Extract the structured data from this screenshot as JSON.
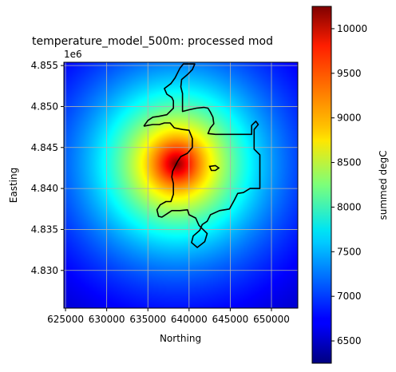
{
  "chart_data": {
    "type": "heatmap",
    "title": "temperature_model_500m: processed mod",
    "xlabel": "Northing",
    "ylabel": "Easting",
    "y_offset_label": "1e6",
    "xlim": [
      624800,
      653200
    ],
    "ylim": [
      4825400,
      4855400
    ],
    "x_ticks": [
      625000,
      630000,
      635000,
      640000,
      645000,
      650000
    ],
    "x_tick_labels": [
      "625000",
      "630000",
      "635000",
      "640000",
      "645000",
      "650000"
    ],
    "y_ticks": [
      4.83,
      4.835,
      4.84,
      4.845,
      4.85,
      4.855
    ],
    "y_tick_labels": [
      "4.830",
      "4.835",
      "4.840",
      "4.845",
      "4.850",
      "4.855"
    ],
    "grid": true,
    "colormap": "jet",
    "colorbar": {
      "label": "summed degC",
      "range": [
        6250,
        10250
      ],
      "ticks": [
        6500,
        7000,
        7500,
        8000,
        8500,
        9000,
        9500,
        10000
      ],
      "tick_labels": [
        "6500",
        "7000",
        "7500",
        "8000",
        "8500",
        "9000",
        "9500",
        "10000"
      ]
    },
    "field": {
      "peak_value": 10250,
      "center": [
        638500,
        4843000
      ],
      "min_value": 6250
    },
    "boundary_color": "#000000",
    "boundary": [
      [
        634500,
        4847600
      ],
      [
        635000,
        4848300
      ],
      [
        635600,
        4848700
      ],
      [
        636300,
        4848800
      ],
      [
        637300,
        4849000
      ],
      [
        638100,
        4849800
      ],
      [
        638100,
        4850700
      ],
      [
        637900,
        4851100
      ],
      [
        637300,
        4851500
      ],
      [
        637000,
        4852200
      ],
      [
        637800,
        4852800
      ],
      [
        638300,
        4853500
      ],
      [
        638600,
        4854100
      ],
      [
        638900,
        4854700
      ],
      [
        639300,
        4855200
      ],
      [
        640700,
        4855200
      ],
      [
        640400,
        4854500
      ],
      [
        639800,
        4853900
      ],
      [
        639100,
        4853300
      ],
      [
        639000,
        4852400
      ],
      [
        639200,
        4851600
      ],
      [
        639200,
        4849400
      ],
      [
        640000,
        4849600
      ],
      [
        640900,
        4849800
      ],
      [
        641800,
        4849900
      ],
      [
        642300,
        4849800
      ],
      [
        642600,
        4849300
      ],
      [
        642900,
        4848700
      ],
      [
        643000,
        4847900
      ],
      [
        642600,
        4847400
      ],
      [
        642300,
        4846700
      ],
      [
        643200,
        4846600
      ],
      [
        645600,
        4846600
      ],
      [
        647600,
        4846600
      ],
      [
        647600,
        4847700
      ],
      [
        648100,
        4848200
      ],
      [
        648400,
        4847800
      ],
      [
        647900,
        4847200
      ],
      [
        647900,
        4844800
      ],
      [
        648600,
        4844100
      ],
      [
        648600,
        4840000
      ],
      [
        647400,
        4840000
      ],
      [
        646600,
        4839500
      ],
      [
        645900,
        4839400
      ],
      [
        645500,
        4838600
      ],
      [
        644900,
        4837500
      ],
      [
        643700,
        4837300
      ],
      [
        642600,
        4836800
      ],
      [
        642200,
        4836000
      ],
      [
        641600,
        4835600
      ],
      [
        641300,
        4834900
      ],
      [
        640500,
        4834200
      ],
      [
        640300,
        4833400
      ],
      [
        641000,
        4832800
      ],
      [
        641900,
        4833500
      ],
      [
        642200,
        4834500
      ],
      [
        641200,
        4835500
      ],
      [
        640800,
        4836400
      ],
      [
        640000,
        4836800
      ],
      [
        639800,
        4837400
      ],
      [
        638900,
        4837300
      ],
      [
        637900,
        4837300
      ],
      [
        637300,
        4836900
      ],
      [
        636700,
        4836500
      ],
      [
        636300,
        4836600
      ],
      [
        636100,
        4837400
      ],
      [
        636500,
        4838000
      ],
      [
        637200,
        4838400
      ],
      [
        637800,
        4838400
      ],
      [
        638100,
        4839300
      ],
      [
        638100,
        4840600
      ],
      [
        637900,
        4841400
      ],
      [
        638000,
        4842100
      ],
      [
        638600,
        4843300
      ],
      [
        639000,
        4843900
      ],
      [
        639800,
        4844300
      ],
      [
        640400,
        4845000
      ],
      [
        640400,
        4846100
      ],
      [
        640000,
        4847100
      ],
      [
        639200,
        4847200
      ],
      [
        638200,
        4847400
      ],
      [
        637700,
        4848000
      ],
      [
        637000,
        4848000
      ],
      [
        636400,
        4847800
      ],
      [
        635600,
        4847800
      ],
      [
        635000,
        4847700
      ],
      [
        634500,
        4847600
      ]
    ],
    "island": [
      [
        642500,
        4842700
      ],
      [
        643200,
        4842800
      ],
      [
        643600,
        4842500
      ],
      [
        643200,
        4842200
      ],
      [
        642700,
        4842200
      ],
      [
        642500,
        4842700
      ]
    ]
  }
}
